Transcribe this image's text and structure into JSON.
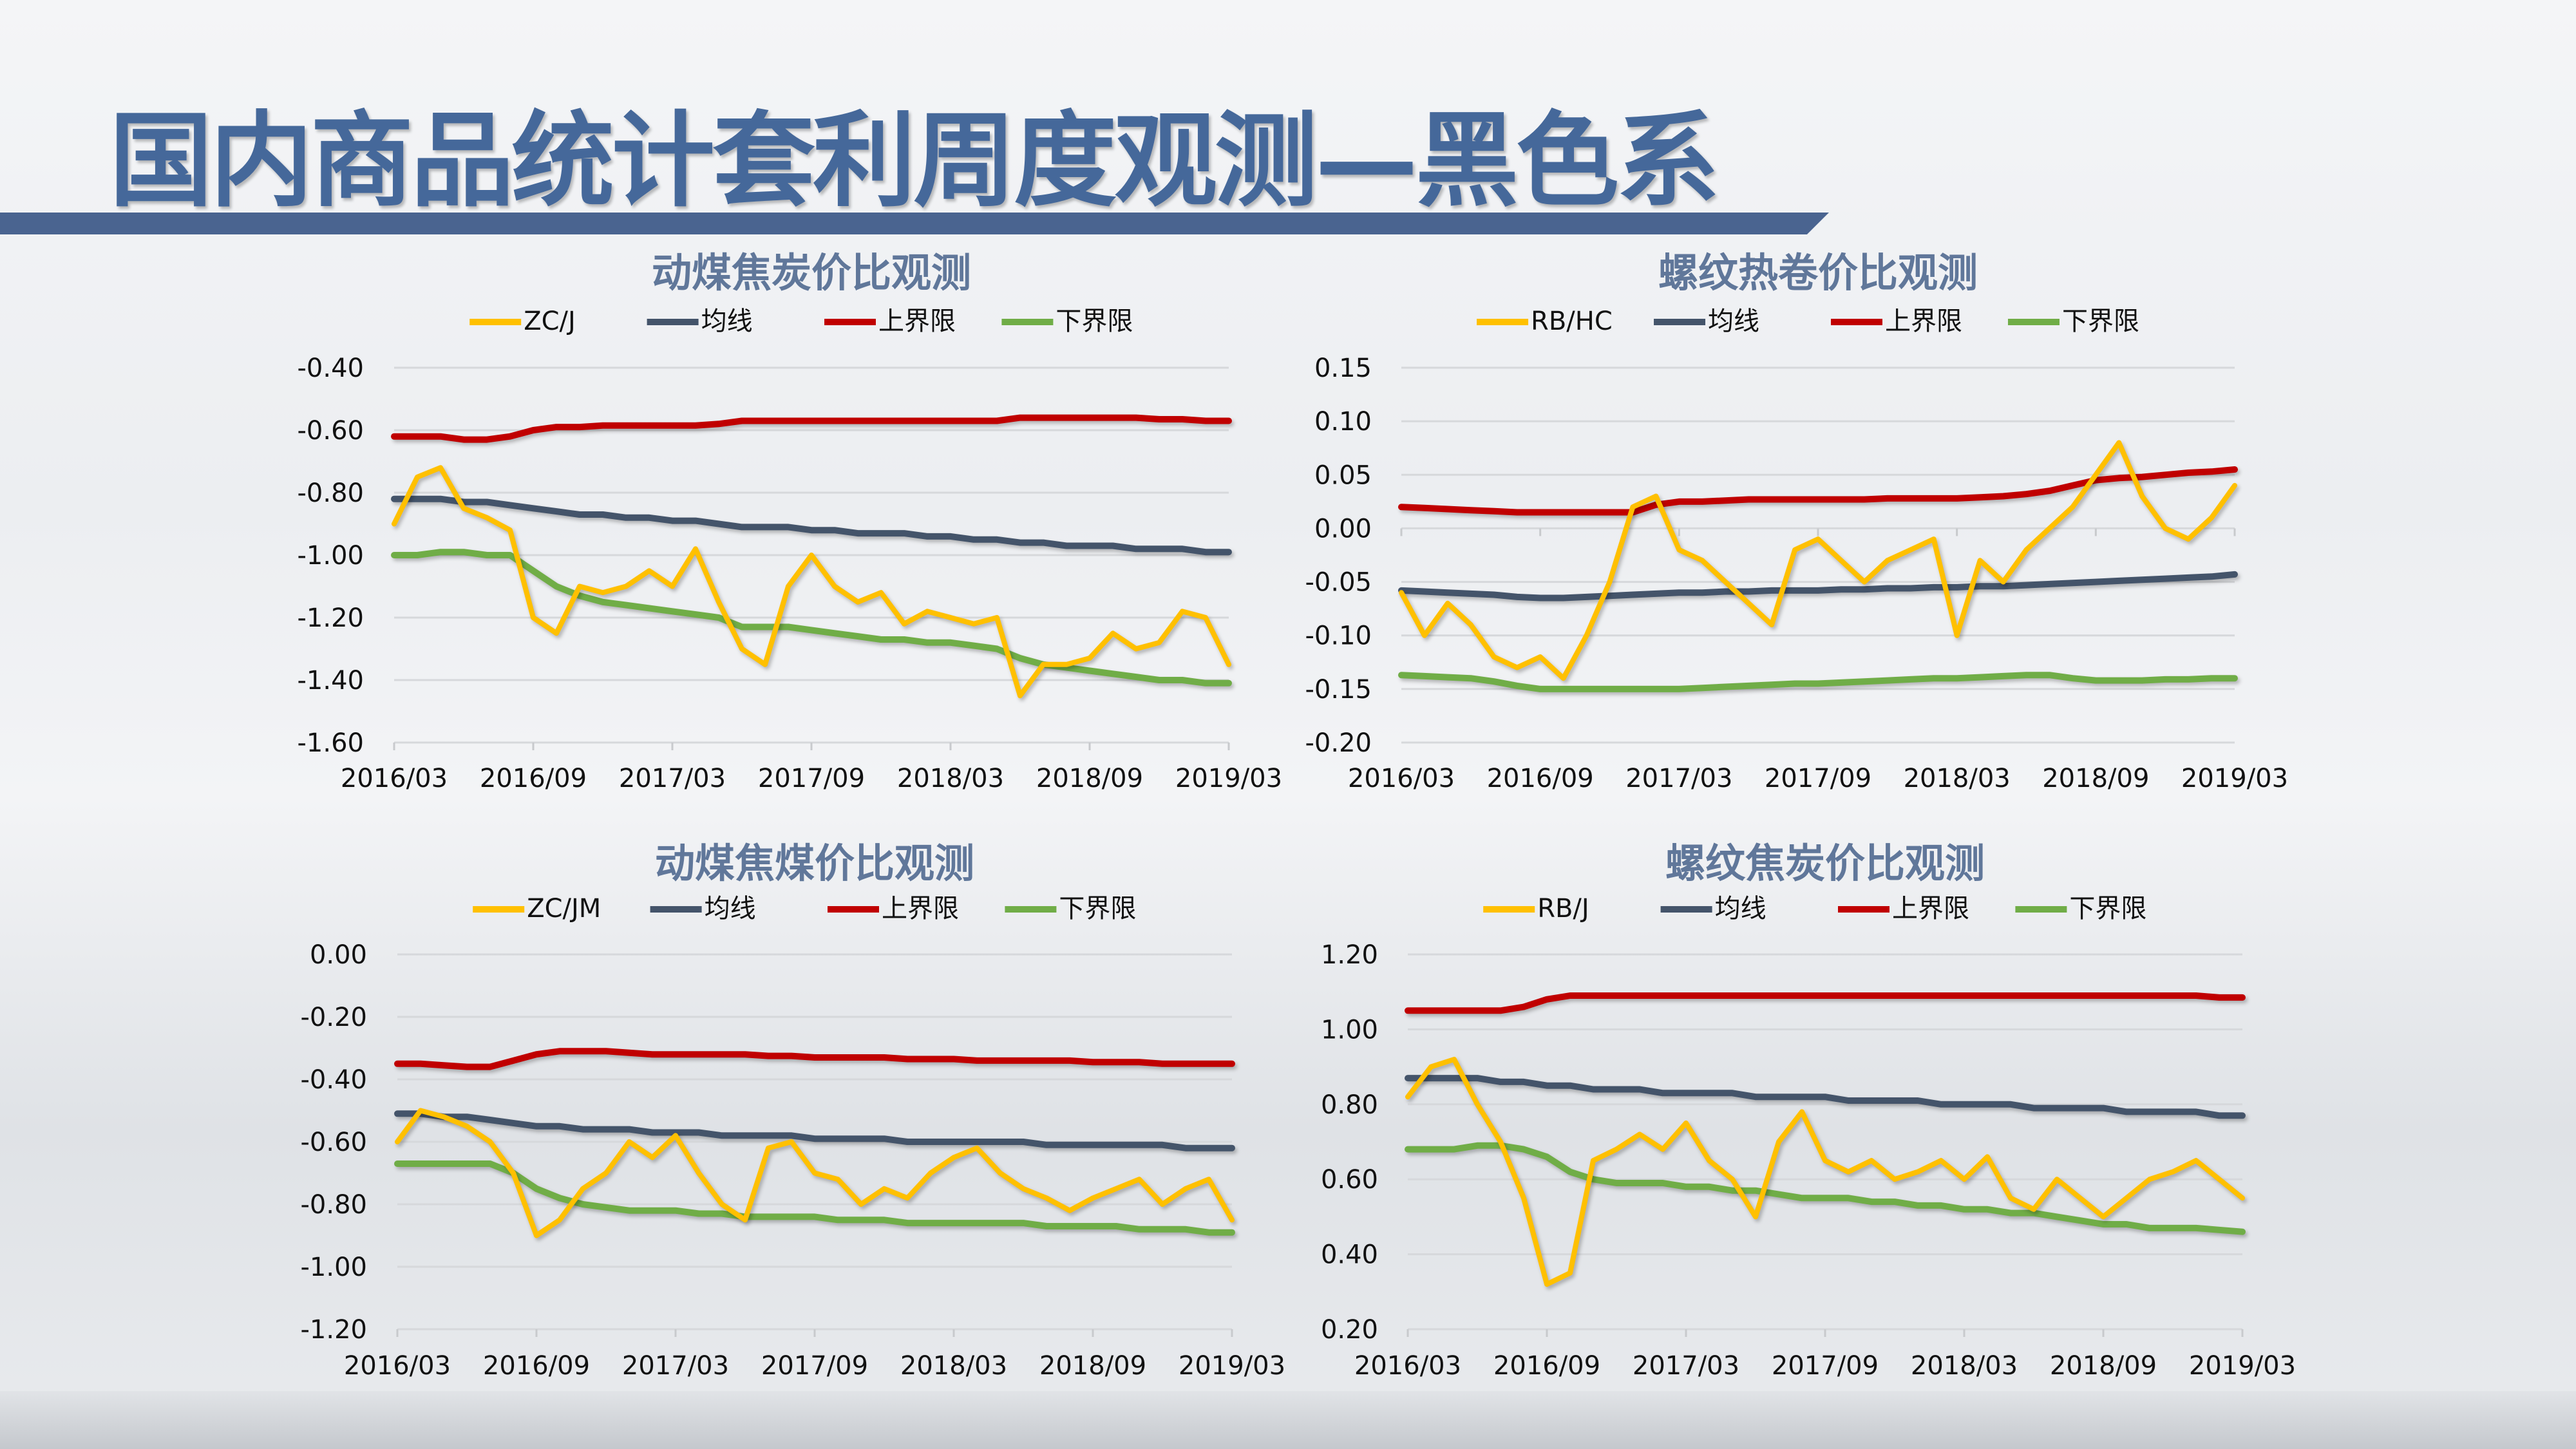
{
  "page": {
    "title": "国内商品统计套利周度观测—黑色系"
  },
  "colors": {
    "ratio": "#ffc000",
    "mean": "#44546a",
    "upper": "#c00000",
    "lower": "#70ad47",
    "title_blue": "#45689a"
  },
  "chart_data": [
    {
      "type": "line",
      "title": "动煤焦炭价比观测",
      "legend": [
        "ZC/J",
        "均线",
        "上界限",
        "下界限"
      ],
      "legend_position": "top",
      "grid": true,
      "ylim": [
        -1.6,
        -0.4
      ],
      "y_ticks": [
        "-0.40",
        "-0.60",
        "-0.80",
        "-1.00",
        "-1.20",
        "-1.40",
        "-1.60"
      ],
      "x_ticks": [
        "2016/03",
        "2016/09",
        "2017/03",
        "2017/09",
        "2018/03",
        "2018/09",
        "2019/03"
      ],
      "x_start": "2016/03",
      "x_end": "2019/03",
      "series": [
        {
          "name": "ZC/J",
          "values": [
            -0.9,
            -0.75,
            -0.72,
            -0.85,
            -0.88,
            -0.92,
            -1.2,
            -1.25,
            -1.1,
            -1.12,
            -1.1,
            -1.05,
            -1.1,
            -0.98,
            -1.15,
            -1.3,
            -1.35,
            -1.1,
            -1.0,
            -1.1,
            -1.15,
            -1.12,
            -1.22,
            -1.18,
            -1.2,
            -1.22,
            -1.2,
            -1.45,
            -1.35,
            -1.35,
            -1.33,
            -1.25,
            -1.3,
            -1.28,
            -1.18,
            -1.2,
            -1.35
          ]
        },
        {
          "name": "均线",
          "values": [
            -0.82,
            -0.82,
            -0.82,
            -0.83,
            -0.83,
            -0.84,
            -0.85,
            -0.86,
            -0.87,
            -0.87,
            -0.88,
            -0.88,
            -0.89,
            -0.89,
            -0.9,
            -0.91,
            -0.91,
            -0.91,
            -0.92,
            -0.92,
            -0.93,
            -0.93,
            -0.93,
            -0.94,
            -0.94,
            -0.95,
            -0.95,
            -0.96,
            -0.96,
            -0.97,
            -0.97,
            -0.97,
            -0.98,
            -0.98,
            -0.98,
            -0.99,
            -0.99
          ]
        },
        {
          "name": "上界限",
          "values": [
            -0.62,
            -0.62,
            -0.62,
            -0.63,
            -0.63,
            -0.62,
            -0.6,
            -0.59,
            -0.59,
            -0.585,
            -0.585,
            -0.585,
            -0.585,
            -0.585,
            -0.58,
            -0.57,
            -0.57,
            -0.57,
            -0.57,
            -0.57,
            -0.57,
            -0.57,
            -0.57,
            -0.57,
            -0.57,
            -0.57,
            -0.57,
            -0.56,
            -0.56,
            -0.56,
            -0.56,
            -0.56,
            -0.56,
            -0.565,
            -0.565,
            -0.57,
            -0.57
          ]
        },
        {
          "name": "下界限",
          "values": [
            -1.0,
            -1.0,
            -0.99,
            -0.99,
            -1.0,
            -1.0,
            -1.05,
            -1.1,
            -1.13,
            -1.15,
            -1.16,
            -1.17,
            -1.18,
            -1.19,
            -1.2,
            -1.23,
            -1.23,
            -1.23,
            -1.24,
            -1.25,
            -1.26,
            -1.27,
            -1.27,
            -1.28,
            -1.28,
            -1.29,
            -1.3,
            -1.33,
            -1.35,
            -1.36,
            -1.37,
            -1.38,
            -1.39,
            -1.4,
            -1.4,
            -1.41,
            -1.41
          ]
        }
      ]
    },
    {
      "type": "line",
      "title": "螺纹热卷价比观测",
      "legend": [
        "RB/HC",
        "均线",
        "上界限",
        "下界限"
      ],
      "legend_position": "top",
      "grid": true,
      "ylim": [
        -0.2,
        0.15
      ],
      "y_ticks": [
        "0.15",
        "0.10",
        "0.05",
        "0.00",
        "-0.05",
        "-0.10",
        "-0.15",
        "-0.20"
      ],
      "x_ticks": [
        "2016/03",
        "2016/09",
        "2017/03",
        "2017/09",
        "2018/03",
        "2018/09",
        "2019/03"
      ],
      "x_start": "2016/03",
      "x_end": "2019/03",
      "series": [
        {
          "name": "RB/HC",
          "values": [
            -0.06,
            -0.1,
            -0.07,
            -0.09,
            -0.12,
            -0.13,
            -0.12,
            -0.14,
            -0.1,
            -0.05,
            0.02,
            0.03,
            -0.02,
            -0.03,
            -0.05,
            -0.07,
            -0.09,
            -0.02,
            -0.01,
            -0.03,
            -0.05,
            -0.03,
            -0.02,
            -0.01,
            -0.1,
            -0.03,
            -0.05,
            -0.02,
            0.0,
            0.02,
            0.05,
            0.08,
            0.03,
            0.0,
            -0.01,
            0.01,
            0.04
          ]
        },
        {
          "name": "均线",
          "values": [
            -0.058,
            -0.059,
            -0.06,
            -0.061,
            -0.062,
            -0.064,
            -0.065,
            -0.065,
            -0.064,
            -0.063,
            -0.062,
            -0.061,
            -0.06,
            -0.06,
            -0.059,
            -0.059,
            -0.058,
            -0.058,
            -0.058,
            -0.057,
            -0.057,
            -0.056,
            -0.056,
            -0.055,
            -0.055,
            -0.054,
            -0.054,
            -0.053,
            -0.052,
            -0.051,
            -0.05,
            -0.049,
            -0.048,
            -0.047,
            -0.046,
            -0.045,
            -0.043
          ]
        },
        {
          "name": "上界限",
          "values": [
            0.02,
            0.019,
            0.018,
            0.017,
            0.016,
            0.015,
            0.015,
            0.015,
            0.015,
            0.015,
            0.015,
            0.022,
            0.025,
            0.025,
            0.026,
            0.027,
            0.027,
            0.027,
            0.027,
            0.027,
            0.027,
            0.028,
            0.028,
            0.028,
            0.028,
            0.029,
            0.03,
            0.032,
            0.035,
            0.04,
            0.045,
            0.047,
            0.048,
            0.05,
            0.052,
            0.053,
            0.055
          ]
        },
        {
          "name": "下界限",
          "values": [
            -0.137,
            -0.138,
            -0.139,
            -0.14,
            -0.143,
            -0.147,
            -0.15,
            -0.15,
            -0.15,
            -0.15,
            -0.15,
            -0.15,
            -0.15,
            -0.149,
            -0.148,
            -0.147,
            -0.146,
            -0.145,
            -0.145,
            -0.144,
            -0.143,
            -0.142,
            -0.141,
            -0.14,
            -0.14,
            -0.139,
            -0.138,
            -0.137,
            -0.137,
            -0.14,
            -0.142,
            -0.142,
            -0.142,
            -0.141,
            -0.141,
            -0.14,
            -0.14
          ]
        }
      ]
    },
    {
      "type": "line",
      "title": "动煤焦煤价比观测",
      "legend": [
        "ZC/JM",
        "均线",
        "上界限",
        "下界限"
      ],
      "legend_position": "top",
      "grid": true,
      "ylim": [
        -1.2,
        0.0
      ],
      "y_ticks": [
        "0.00",
        "-0.20",
        "-0.40",
        "-0.60",
        "-0.80",
        "-1.00",
        "-1.20"
      ],
      "x_ticks": [
        "2016/03",
        "2016/09",
        "2017/03",
        "2017/09",
        "2018/03",
        "2018/09",
        "2019/03"
      ],
      "x_start": "2016/03",
      "x_end": "2019/03",
      "series": [
        {
          "name": "ZC/JM",
          "values": [
            -0.6,
            -0.5,
            -0.52,
            -0.55,
            -0.6,
            -0.7,
            -0.9,
            -0.85,
            -0.75,
            -0.7,
            -0.6,
            -0.65,
            -0.58,
            -0.7,
            -0.8,
            -0.85,
            -0.62,
            -0.6,
            -0.7,
            -0.72,
            -0.8,
            -0.75,
            -0.78,
            -0.7,
            -0.65,
            -0.62,
            -0.7,
            -0.75,
            -0.78,
            -0.82,
            -0.78,
            -0.75,
            -0.72,
            -0.8,
            -0.75,
            -0.72,
            -0.85
          ]
        },
        {
          "name": "均线",
          "values": [
            -0.51,
            -0.51,
            -0.52,
            -0.52,
            -0.53,
            -0.54,
            -0.55,
            -0.55,
            -0.56,
            -0.56,
            -0.56,
            -0.57,
            -0.57,
            -0.57,
            -0.58,
            -0.58,
            -0.58,
            -0.58,
            -0.59,
            -0.59,
            -0.59,
            -0.59,
            -0.6,
            -0.6,
            -0.6,
            -0.6,
            -0.6,
            -0.6,
            -0.61,
            -0.61,
            -0.61,
            -0.61,
            -0.61,
            -0.61,
            -0.62,
            -0.62,
            -0.62
          ]
        },
        {
          "name": "上界限",
          "values": [
            -0.35,
            -0.35,
            -0.355,
            -0.36,
            -0.36,
            -0.34,
            -0.32,
            -0.31,
            -0.31,
            -0.31,
            -0.315,
            -0.32,
            -0.32,
            -0.32,
            -0.32,
            -0.32,
            -0.325,
            -0.325,
            -0.33,
            -0.33,
            -0.33,
            -0.33,
            -0.335,
            -0.335,
            -0.335,
            -0.34,
            -0.34,
            -0.34,
            -0.34,
            -0.34,
            -0.345,
            -0.345,
            -0.345,
            -0.35,
            -0.35,
            -0.35,
            -0.35
          ]
        },
        {
          "name": "下界限",
          "values": [
            -0.67,
            -0.67,
            -0.67,
            -0.67,
            -0.67,
            -0.7,
            -0.75,
            -0.78,
            -0.8,
            -0.81,
            -0.82,
            -0.82,
            -0.82,
            -0.83,
            -0.83,
            -0.84,
            -0.84,
            -0.84,
            -0.84,
            -0.85,
            -0.85,
            -0.85,
            -0.86,
            -0.86,
            -0.86,
            -0.86,
            -0.86,
            -0.86,
            -0.87,
            -0.87,
            -0.87,
            -0.87,
            -0.88,
            -0.88,
            -0.88,
            -0.89,
            -0.89
          ]
        }
      ]
    },
    {
      "type": "line",
      "title": "螺纹焦炭价比观测",
      "legend": [
        "RB/J",
        "均线",
        "上界限",
        "下界限"
      ],
      "legend_position": "top",
      "grid": true,
      "ylim": [
        0.2,
        1.2
      ],
      "y_ticks": [
        "1.20",
        "1.00",
        "0.80",
        "0.60",
        "0.40",
        "0.20"
      ],
      "x_ticks": [
        "2016/03",
        "2016/09",
        "2017/03",
        "2017/09",
        "2018/03",
        "2018/09",
        "2019/03"
      ],
      "x_start": "2016/03",
      "x_end": "2019/03",
      "series": [
        {
          "name": "RB/J",
          "values": [
            0.82,
            0.9,
            0.92,
            0.8,
            0.7,
            0.55,
            0.32,
            0.35,
            0.65,
            0.68,
            0.72,
            0.68,
            0.75,
            0.65,
            0.6,
            0.5,
            0.7,
            0.78,
            0.65,
            0.62,
            0.65,
            0.6,
            0.62,
            0.65,
            0.6,
            0.66,
            0.55,
            0.52,
            0.6,
            0.55,
            0.5,
            0.55,
            0.6,
            0.62,
            0.65,
            0.6,
            0.55
          ]
        },
        {
          "name": "均线",
          "values": [
            0.87,
            0.87,
            0.87,
            0.87,
            0.86,
            0.86,
            0.85,
            0.85,
            0.84,
            0.84,
            0.84,
            0.83,
            0.83,
            0.83,
            0.83,
            0.82,
            0.82,
            0.82,
            0.82,
            0.81,
            0.81,
            0.81,
            0.81,
            0.8,
            0.8,
            0.8,
            0.8,
            0.79,
            0.79,
            0.79,
            0.79,
            0.78,
            0.78,
            0.78,
            0.78,
            0.77,
            0.77
          ]
        },
        {
          "name": "上界限",
          "values": [
            1.05,
            1.05,
            1.05,
            1.05,
            1.05,
            1.06,
            1.08,
            1.09,
            1.09,
            1.09,
            1.09,
            1.09,
            1.09,
            1.09,
            1.09,
            1.09,
            1.09,
            1.09,
            1.09,
            1.09,
            1.09,
            1.09,
            1.09,
            1.09,
            1.09,
            1.09,
            1.09,
            1.09,
            1.09,
            1.09,
            1.09,
            1.09,
            1.09,
            1.09,
            1.09,
            1.085,
            1.085
          ]
        },
        {
          "name": "下界限",
          "values": [
            0.68,
            0.68,
            0.68,
            0.69,
            0.69,
            0.68,
            0.66,
            0.62,
            0.6,
            0.59,
            0.59,
            0.59,
            0.58,
            0.58,
            0.57,
            0.57,
            0.56,
            0.55,
            0.55,
            0.55,
            0.54,
            0.54,
            0.53,
            0.53,
            0.52,
            0.52,
            0.51,
            0.51,
            0.5,
            0.49,
            0.48,
            0.48,
            0.47,
            0.47,
            0.47,
            0.465,
            0.46
          ]
        }
      ]
    }
  ]
}
